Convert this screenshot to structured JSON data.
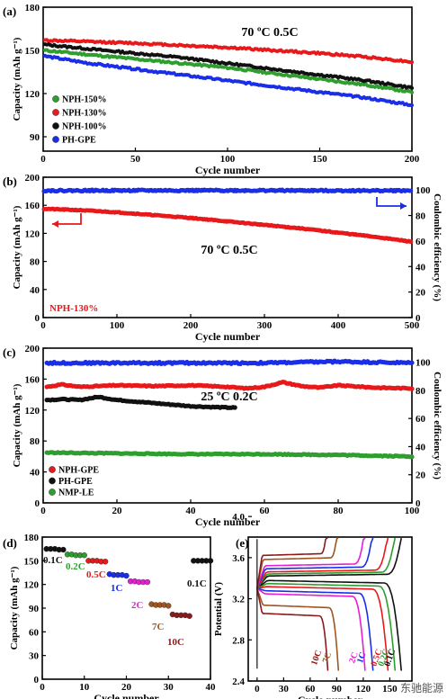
{
  "watermark": "东驰能源",
  "chart_data": [
    {
      "panel": "(a)",
      "type": "line",
      "title": "70 ºC 0.5C",
      "xlabel": "Cycle number",
      "ylabel": "Capacity (mAh g⁻¹)",
      "xlim": [
        0,
        200
      ],
      "ylim": [
        80,
        180
      ],
      "xticks": [
        0,
        50,
        100,
        150,
        200
      ],
      "yticks": [
        90,
        120,
        150,
        180
      ],
      "legend_position": "bottom-left",
      "series": [
        {
          "name": "NPH-150%",
          "color": "#2e9e2e",
          "x": [
            1,
            25,
            50,
            75,
            100,
            125,
            150,
            175,
            200
          ],
          "y": [
            150,
            147,
            144,
            141,
            138,
            134,
            130,
            126,
            121
          ]
        },
        {
          "name": "NPH-130%",
          "color": "#e8191b",
          "x": [
            1,
            25,
            50,
            75,
            100,
            125,
            150,
            175,
            200
          ],
          "y": [
            157,
            156,
            155,
            153.5,
            152,
            150,
            148,
            145.5,
            142
          ]
        },
        {
          "name": "NPH-100%",
          "color": "#111111",
          "x": [
            1,
            25,
            50,
            75,
            100,
            125,
            150,
            175,
            200
          ],
          "y": [
            154,
            151,
            148,
            145,
            141,
            137,
            133,
            129,
            124
          ]
        },
        {
          "name": "PH-GPE",
          "color": "#1a2ee8",
          "x": [
            1,
            25,
            50,
            75,
            100,
            125,
            150,
            175,
            200
          ],
          "y": [
            146,
            141,
            137,
            133,
            129,
            125,
            121,
            117,
            112
          ]
        }
      ]
    },
    {
      "panel": "(b)",
      "type": "line",
      "title": "70 ºC 0.5C",
      "xlabel": "Cycle number",
      "ylabel": "Capacity (mAh g⁻¹)",
      "ylabel2": "Coulombic efficiency (%)",
      "xlim": [
        0,
        500
      ],
      "ylim": [
        0,
        200
      ],
      "y2lim": [
        0,
        110
      ],
      "xticks": [
        0,
        100,
        200,
        300,
        400,
        500
      ],
      "yticks": [
        0,
        40,
        80,
        120,
        160,
        200
      ],
      "y2ticks": [
        0,
        20,
        40,
        60,
        80,
        100
      ],
      "annotation": "NPH-130%",
      "series": [
        {
          "axis": "left",
          "color": "#e8191b",
          "x": [
            1,
            50,
            100,
            150,
            200,
            250,
            300,
            350,
            400,
            450,
            500
          ],
          "y": [
            155,
            153,
            150,
            146,
            142,
            137,
            132,
            127,
            121,
            115,
            108
          ]
        },
        {
          "axis": "right",
          "color": "#1a2ee8",
          "x": [
            1,
            100,
            200,
            300,
            400,
            500
          ],
          "y": [
            99.5,
            99.6,
            99.6,
            99.6,
            99.5,
            99.5
          ]
        }
      ]
    },
    {
      "panel": "(c)",
      "type": "scatter",
      "title": "25 ºC 0.2C",
      "xlabel": "Cycle number",
      "ylabel": "Capacity (mAh g⁻¹)",
      "ylabel2": "Coulombic efficiency (%)",
      "xlim": [
        0,
        100
      ],
      "ylim": [
        0,
        200
      ],
      "y2lim": [
        0,
        110
      ],
      "xticks": [
        0,
        20,
        40,
        60,
        80,
        100
      ],
      "yticks": [
        0,
        40,
        80,
        120,
        160,
        200
      ],
      "y2ticks": [
        0,
        20,
        40,
        60,
        80,
        100
      ],
      "legend_position": "bottom-left",
      "series": [
        {
          "name": "NPH-GPE",
          "color": "#e8191b",
          "x": [
            1,
            5,
            10,
            20,
            30,
            40,
            50,
            55,
            60,
            65,
            70,
            75,
            80,
            90,
            100
          ],
          "y": [
            150,
            153,
            150,
            152,
            151,
            152,
            150,
            148,
            150,
            156,
            151,
            149,
            152,
            149,
            148
          ]
        },
        {
          "name": "PH-GPE",
          "color": "#111111",
          "x": [
            1,
            5,
            10,
            15,
            20,
            25,
            30,
            35,
            40,
            45,
            52
          ],
          "y": [
            133,
            134,
            133,
            137,
            133,
            131,
            129,
            127,
            125,
            124,
            123
          ]
        },
        {
          "name": "NMP-LE",
          "color": "#2e9e2e",
          "x": [
            1,
            20,
            40,
            60,
            80,
            100
          ],
          "y": [
            65,
            64,
            63,
            63,
            62,
            60
          ]
        },
        {
          "axis": "right",
          "color": "#1a2ee8",
          "x": [
            1,
            20,
            40,
            60,
            80,
            100
          ],
          "y": [
            99.5,
            99.5,
            99.5,
            99.5,
            100.5,
            99.5
          ]
        }
      ]
    },
    {
      "panel": "(d)",
      "type": "scatter",
      "xlabel": "Cycle number",
      "ylabel": "Capacity (mAh g⁻¹)",
      "xlim": [
        0,
        40
      ],
      "ylim": [
        0,
        180
      ],
      "xticks": [
        0,
        10,
        20,
        30,
        40
      ],
      "yticks": [
        0,
        30,
        60,
        90,
        120,
        150,
        180
      ],
      "series": [
        {
          "name": "0.1C",
          "color": "#111111",
          "x": [
            1,
            2,
            3,
            4,
            5
          ],
          "y": [
            165,
            165,
            165,
            164,
            164
          ]
        },
        {
          "name": "0.2C",
          "color": "#2e9e2e",
          "x": [
            6,
            7,
            8,
            9,
            10
          ],
          "y": [
            158,
            158,
            157,
            157,
            157
          ]
        },
        {
          "name": "0.5C",
          "color": "#e8191b",
          "x": [
            11,
            12,
            13,
            14,
            15
          ],
          "y": [
            150,
            150,
            150,
            149,
            149
          ]
        },
        {
          "name": "1C",
          "color": "#1a2ee8",
          "x": [
            16,
            17,
            18,
            19,
            20
          ],
          "y": [
            133,
            132,
            132,
            132,
            131
          ]
        },
        {
          "name": "2C",
          "color": "#e81ed2",
          "x": [
            21,
            22,
            23,
            24,
            25
          ],
          "y": [
            124,
            124,
            123,
            123,
            123
          ]
        },
        {
          "name": "7C",
          "color": "#a0551e",
          "x": [
            26,
            27,
            28,
            29,
            30
          ],
          "y": [
            95,
            94,
            94,
            94,
            93
          ]
        },
        {
          "name": "10C",
          "color": "#8b1a1a",
          "x": [
            31,
            32,
            33,
            34,
            35
          ],
          "y": [
            82,
            81,
            81,
            81,
            80
          ]
        },
        {
          "name": "0.1C",
          "color": "#111111",
          "x": [
            36,
            37,
            38,
            39,
            40
          ],
          "y": [
            150,
            150,
            150,
            150,
            150
          ]
        }
      ]
    },
    {
      "panel": "(e)",
      "type": "line",
      "xlabel": "Cycle number",
      "ylabel": "Potential (V)",
      "xlim": [
        -10,
        175
      ],
      "ylim": [
        2.4,
        3.8
      ],
      "xticks": [
        0,
        30,
        60,
        90,
        120,
        150
      ],
      "yticks": [
        2.4,
        2.8,
        3.2,
        3.6,
        4.0
      ],
      "series": [
        {
          "name": "0.1C",
          "color": "#111111",
          "cap": 163,
          "vc": 3.42,
          "vd": 3.38
        },
        {
          "name": "0.2C",
          "color": "#2e9e2e",
          "cap": 156,
          "vc": 3.44,
          "vd": 3.35
        },
        {
          "name": "0.5C",
          "color": "#e8191b",
          "cap": 148,
          "vc": 3.46,
          "vd": 3.32
        },
        {
          "name": "1C",
          "color": "#1a2ee8",
          "cap": 131,
          "vc": 3.49,
          "vd": 3.28
        },
        {
          "name": "2C",
          "color": "#e81ed2",
          "cap": 122,
          "vc": 3.52,
          "vd": 3.25
        },
        {
          "name": "7C",
          "color": "#a0551e",
          "cap": 92,
          "vc": 3.58,
          "vd": 3.14
        },
        {
          "name": "10C",
          "color": "#8b1a1a",
          "cap": 80,
          "vc": 3.62,
          "vd": 3.06
        }
      ]
    }
  ]
}
